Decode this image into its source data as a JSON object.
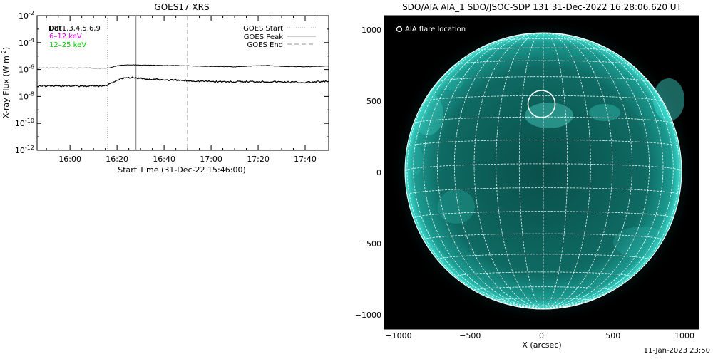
{
  "chart_data": [
    {
      "type": "line",
      "title": "GOES17 XRS",
      "xlabel": "Start Time (31-Dec-22 15:46:00)",
      "ylabel": "X-ray Flux (W m",
      "ylabel_superscript": "-2",
      "ylabel_close": ")",
      "yscale": "log",
      "xlim": [
        "15:46",
        "17:50"
      ],
      "ylim": [
        1e-12,
        0.01
      ],
      "grid": false,
      "x_ticks": [
        "16:00",
        "16:20",
        "16:40",
        "17:00",
        "17:20",
        "17:40"
      ],
      "y_ticks": [
        {
          "base": "10",
          "exp": "-2"
        },
        {
          "base": "10",
          "exp": "-4"
        },
        {
          "base": "10",
          "exp": "-6"
        },
        {
          "base": "10",
          "exp": "-8"
        },
        {
          "base": "10",
          "exp": "-10"
        },
        {
          "base": "10",
          "exp": "-12"
        }
      ],
      "label_text": {
        "detectors": "Det1,3,4,5,6,9",
        "detectors_overlap": "D8t",
        "channel_low": "6–12 keV",
        "channel_high": "12–25 keV"
      },
      "channel_colors": {
        "low": "#e000e0",
        "high": "#00cc00"
      },
      "legend": {
        "placement": "top-right",
        "entries": [
          {
            "name": "GOES Start",
            "style": "dotted",
            "time": "16:16"
          },
          {
            "name": "GOES Peak",
            "style": "solid",
            "time": "16:28"
          },
          {
            "name": "GOES End",
            "style": "dashed",
            "time": "16:50"
          }
        ]
      },
      "series": [
        {
          "name": "GOES channel (upper)",
          "x": [
            "15:46",
            "16:00",
            "16:10",
            "16:14",
            "16:16",
            "16:18",
            "16:20",
            "16:22",
            "16:24",
            "16:26",
            "16:28",
            "16:32",
            "16:40",
            "16:50",
            "17:00",
            "17:10",
            "17:20",
            "17:24",
            "17:30",
            "17:40",
            "17:50"
          ],
          "y": [
            1.3e-06,
            1.3e-06,
            1.3e-06,
            1.25e-06,
            1.3e-06,
            1.5e-06,
            1.9e-06,
            2.1e-06,
            2.2e-06,
            2.2e-06,
            2.2e-06,
            2.1e-06,
            2e-06,
            1.9e-06,
            1.7e-06,
            1.6e-06,
            1.9e-06,
            2e-06,
            1.7e-06,
            1.6e-06,
            1.8e-06
          ]
        },
        {
          "name": "GOES channel (lower)",
          "x": [
            "15:46",
            "16:00",
            "16:10",
            "16:14",
            "16:16",
            "16:18",
            "16:20",
            "16:22",
            "16:24",
            "16:26",
            "16:28",
            "16:32",
            "16:40",
            "16:50",
            "17:00",
            "17:10",
            "17:20",
            "17:30",
            "17:40",
            "17:50"
          ],
          "y": [
            6e-08,
            6e-08,
            6e-08,
            6e-08,
            7e-08,
            1.1e-07,
            1.7e-07,
            2.2e-07,
            2.5e-07,
            2.4e-07,
            2.3e-07,
            2e-07,
            1.7e-07,
            1.5e-07,
            1.3e-07,
            1.2e-07,
            1.3e-07,
            1.2e-07,
            1.1e-07,
            1.3e-07
          ]
        }
      ]
    },
    {
      "type": "image",
      "title": "SDO/AIA AIA_1 SDO/JSOC-SDP 131 31-Dec-2022 16:28:06.620 UT",
      "xlabel": "X (arcsec)",
      "xlim": [
        -1100,
        1100
      ],
      "ylim": [
        -1100,
        1100
      ],
      "x_ticks": [
        "−1000",
        "−500",
        "0",
        "500",
        "1000"
      ],
      "y_ticks": [
        "1000",
        "500",
        "0",
        "−500",
        "−1000"
      ],
      "legend": {
        "placement": "top-left",
        "entries": [
          {
            "name": "AIA flare location",
            "marker": "circle"
          }
        ]
      },
      "flare_location": {
        "x": 0,
        "y": 480
      },
      "colors": {
        "background": "#000000",
        "disk": "#0f6e66",
        "grid": "#ffffff",
        "limb": "#2fd0c4"
      }
    }
  ],
  "footer": {
    "date_text": "11-Jan-2023 23:50"
  }
}
